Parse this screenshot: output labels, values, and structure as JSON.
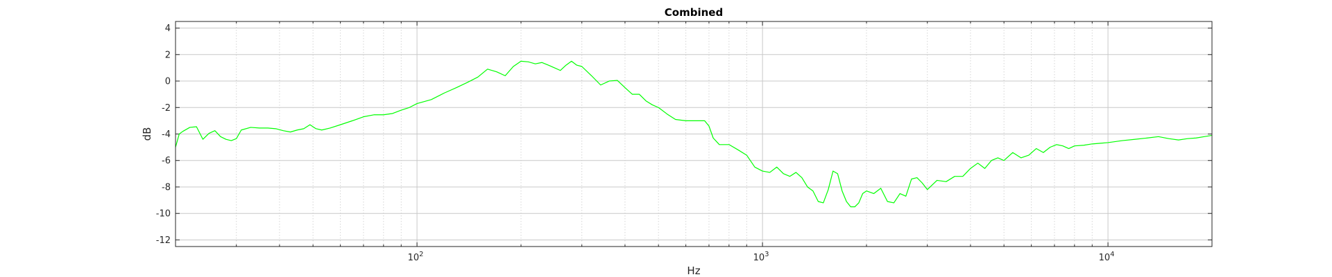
{
  "chart_data": {
    "type": "line",
    "title": "Combined",
    "xlabel": "Hz",
    "ylabel": "dB",
    "xscale": "log",
    "xlim": [
      20,
      20000
    ],
    "ylim": [
      -12.5,
      4.5
    ],
    "grid": true,
    "xticks": [
      {
        "value": 100,
        "base": "10",
        "exp": "2"
      },
      {
        "value": 1000,
        "base": "10",
        "exp": "3"
      },
      {
        "value": 10000,
        "base": "10",
        "exp": "4"
      }
    ],
    "yticks": [
      {
        "value": 4,
        "label": "4"
      },
      {
        "value": 2,
        "label": "2"
      },
      {
        "value": 0,
        "label": "0"
      },
      {
        "value": -2,
        "label": "-2"
      },
      {
        "value": -4,
        "label": "-4"
      },
      {
        "value": -6,
        "label": "-6"
      },
      {
        "value": -8,
        "label": "-8"
      },
      {
        "value": -10,
        "label": "-10"
      },
      {
        "value": -12,
        "label": "-12"
      }
    ],
    "series": [
      {
        "color": "#00ff00",
        "x": [
          20,
          20.5,
          21,
          22,
          23,
          24,
          25,
          26,
          27,
          28,
          29,
          30,
          31,
          33,
          35,
          37,
          39,
          41,
          43,
          45,
          47,
          49,
          51,
          53,
          56,
          60,
          65,
          70,
          75,
          80,
          85,
          90,
          95,
          100,
          110,
          120,
          130,
          140,
          150,
          160,
          170,
          180,
          190,
          200,
          210,
          220,
          230,
          240,
          250,
          260,
          270,
          280,
          290,
          300,
          320,
          340,
          360,
          380,
          400,
          420,
          440,
          460,
          480,
          500,
          530,
          560,
          600,
          640,
          680,
          700,
          720,
          750,
          800,
          850,
          900,
          950,
          1000,
          1050,
          1100,
          1150,
          1200,
          1250,
          1300,
          1350,
          1400,
          1450,
          1500,
          1550,
          1600,
          1650,
          1700,
          1750,
          1800,
          1850,
          1900,
          1950,
          2000,
          2100,
          2200,
          2300,
          2400,
          2500,
          2600,
          2700,
          2800,
          2900,
          3000,
          3200,
          3400,
          3600,
          3800,
          4000,
          4200,
          4400,
          4600,
          4800,
          5000,
          5300,
          5600,
          5900,
          6200,
          6500,
          6800,
          7100,
          7400,
          7700,
          8000,
          8500,
          9000,
          9500,
          10000,
          11000,
          12000,
          13000,
          14000,
          15000,
          16000,
          17000,
          18000,
          19000,
          20000
        ],
        "y": [
          -5.0,
          -4.0,
          -3.8,
          -3.5,
          -3.45,
          -4.4,
          -3.95,
          -3.75,
          -4.2,
          -4.4,
          -4.5,
          -4.35,
          -3.7,
          -3.5,
          -3.55,
          -3.55,
          -3.6,
          -3.75,
          -3.85,
          -3.7,
          -3.6,
          -3.3,
          -3.6,
          -3.7,
          -3.55,
          -3.3,
          -3.0,
          -2.7,
          -2.55,
          -2.55,
          -2.45,
          -2.2,
          -2.0,
          -1.7,
          -1.4,
          -0.9,
          -0.5,
          -0.1,
          0.3,
          0.9,
          0.7,
          0.4,
          1.1,
          1.5,
          1.45,
          1.3,
          1.4,
          1.2,
          1.0,
          0.8,
          1.2,
          1.5,
          1.2,
          1.1,
          0.4,
          -0.3,
          0.0,
          0.05,
          -0.5,
          -1.0,
          -1.0,
          -1.5,
          -1.8,
          -2.0,
          -2.5,
          -2.9,
          -3.0,
          -3.0,
          -3.0,
          -3.4,
          -4.3,
          -4.8,
          -4.8,
          -5.2,
          -5.6,
          -6.5,
          -6.8,
          -6.9,
          -6.5,
          -7.0,
          -7.2,
          -6.9,
          -7.3,
          -8.0,
          -8.3,
          -9.1,
          -9.2,
          -8.2,
          -6.8,
          -7.0,
          -8.3,
          -9.1,
          -9.5,
          -9.5,
          -9.2,
          -8.5,
          -8.3,
          -8.5,
          -8.1,
          -9.1,
          -9.2,
          -8.5,
          -8.7,
          -7.4,
          -7.3,
          -7.7,
          -8.2,
          -7.5,
          -7.6,
          -7.2,
          -7.2,
          -6.6,
          -6.2,
          -6.6,
          -6.0,
          -5.8,
          -6.0,
          -5.4,
          -5.8,
          -5.6,
          -5.1,
          -5.4,
          -5.0,
          -4.8,
          -4.9,
          -5.1,
          -4.9,
          -4.85,
          -4.75,
          -4.7,
          -4.65,
          -4.5,
          -4.4,
          -4.3,
          -4.2,
          -4.35,
          -4.45,
          -4.35,
          -4.3,
          -4.2,
          -4.1
        ]
      }
    ]
  }
}
